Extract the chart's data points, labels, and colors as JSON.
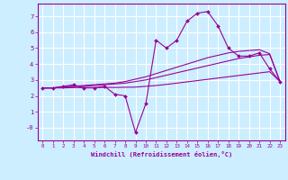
{
  "xlabel": "Windchill (Refroidissement éolien,°C)",
  "bg_color": "#cceeff",
  "grid_color": "#ffffff",
  "line_color": "#990099",
  "x_data": [
    0,
    1,
    2,
    3,
    4,
    5,
    6,
    7,
    8,
    9,
    10,
    11,
    12,
    13,
    14,
    15,
    16,
    17,
    18,
    19,
    20,
    21,
    22,
    23
  ],
  "y_main": [
    2.5,
    2.5,
    2.6,
    2.7,
    2.5,
    2.5,
    2.6,
    2.1,
    2.0,
    -0.3,
    1.5,
    5.5,
    5.0,
    5.5,
    6.7,
    7.2,
    7.3,
    6.4,
    5.0,
    4.5,
    4.5,
    4.7,
    3.7,
    2.9
  ],
  "y_line1": [
    2.5,
    2.5,
    2.55,
    2.6,
    2.6,
    2.65,
    2.7,
    2.75,
    2.8,
    2.9,
    3.0,
    3.15,
    3.3,
    3.45,
    3.6,
    3.75,
    3.9,
    4.05,
    4.2,
    4.35,
    4.45,
    4.55,
    4.6,
    2.9
  ],
  "y_line2": [
    2.5,
    2.5,
    2.55,
    2.6,
    2.65,
    2.7,
    2.75,
    2.8,
    2.9,
    3.05,
    3.2,
    3.4,
    3.6,
    3.8,
    4.0,
    4.2,
    4.4,
    4.55,
    4.7,
    4.8,
    4.85,
    4.9,
    4.65,
    2.9
  ],
  "y_line3": [
    2.5,
    2.5,
    2.5,
    2.52,
    2.52,
    2.52,
    2.53,
    2.53,
    2.54,
    2.55,
    2.6,
    2.65,
    2.72,
    2.8,
    2.88,
    2.96,
    3.04,
    3.12,
    3.2,
    3.28,
    3.36,
    3.44,
    3.52,
    2.9
  ],
  "xlim": [
    -0.5,
    23.5
  ],
  "ylim": [
    -0.8,
    7.8
  ],
  "yticks": [
    0,
    1,
    2,
    3,
    4,
    5,
    6,
    7
  ],
  "xticks": [
    0,
    1,
    2,
    3,
    4,
    5,
    6,
    7,
    8,
    9,
    10,
    11,
    12,
    13,
    14,
    15,
    16,
    17,
    18,
    19,
    20,
    21,
    22,
    23
  ]
}
